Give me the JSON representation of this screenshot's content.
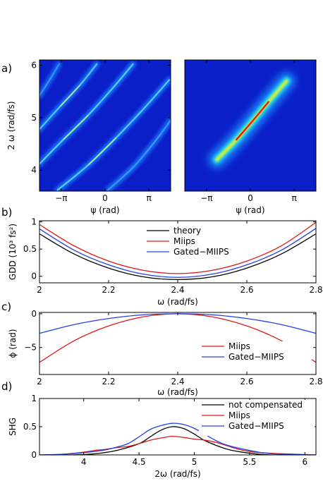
{
  "figure": {
    "panels": [
      {
        "label": "a)"
      },
      {
        "label": "b)"
      },
      {
        "label": "c)"
      },
      {
        "label": "d)"
      }
    ]
  },
  "chart_data": [
    {
      "type": "heatmap",
      "panel": "a) left",
      "xlabel": "ψ (rad)",
      "ylabel": "2 ω (rad/fs)",
      "xlim": [
        -4.7,
        4.7
      ],
      "ylim": [
        3.6,
        6.1
      ],
      "xticks": [
        {
          "v": -3.1416,
          "label": "−π"
        },
        {
          "v": 0,
          "label": "0"
        },
        {
          "v": 3.1416,
          "label": "π"
        }
      ],
      "yticks": [
        {
          "v": 4,
          "label": "4"
        },
        {
          "v": 5,
          "label": "5"
        },
        {
          "v": 6,
          "label": "6"
        }
      ],
      "background_color": "#0b1fc8",
      "ridges": [
        {
          "points": [
            [
              -4.7,
              5.42
            ],
            [
              -3.9,
              5.75
            ],
            [
              -3.3,
              6.02
            ]
          ],
          "peak": 0.3
        },
        {
          "points": [
            [
              -4.7,
              4.78
            ],
            [
              -3.2,
              5.22
            ],
            [
              -1.8,
              5.62
            ],
            [
              -0.6,
              6.02
            ]
          ],
          "peak": 0.55
        },
        {
          "points": [
            [
              -4.7,
              4.12
            ],
            [
              -3.0,
              4.58
            ],
            [
              -1.2,
              5.05
            ],
            [
              0.6,
              5.58
            ],
            [
              2.0,
              6.02
            ]
          ],
          "peak": 0.65
        },
        {
          "points": [
            [
              -3.4,
              3.62
            ],
            [
              -1.2,
              4.1
            ],
            [
              0.8,
              4.62
            ],
            [
              2.7,
              5.15
            ],
            [
              4.6,
              5.72
            ]
          ],
          "peak": 0.62
        },
        {
          "points": [
            [
              0.2,
              3.62
            ],
            [
              2.0,
              4.05
            ],
            [
              3.5,
              4.52
            ],
            [
              4.7,
              4.95
            ]
          ],
          "peak": 0.45
        }
      ]
    },
    {
      "type": "heatmap",
      "panel": "a) right",
      "xlabel": "ψ (rad)",
      "xlim": [
        -4.7,
        4.7
      ],
      "ylim": [
        3.6,
        6.1
      ],
      "xticks": [
        {
          "v": -3.1416,
          "label": "−π"
        },
        {
          "v": 0,
          "label": "0"
        },
        {
          "v": 3.1416,
          "label": "π"
        }
      ],
      "background_color": "#0b1fc8",
      "ridges": [
        {
          "points": [
            [
              -2.4,
              4.2
            ],
            [
              -1.0,
              4.58
            ],
            [
              0.2,
              4.95
            ],
            [
              1.3,
              5.3
            ],
            [
              2.6,
              5.7
            ]
          ],
          "peak": 1.0
        }
      ]
    },
    {
      "type": "line",
      "panel": "b)",
      "xlabel": "ω  (rad/fs)",
      "ylabel": "GDD (10³ fs²)",
      "xlim": [
        2.0,
        2.8
      ],
      "ylim": [
        -0.12,
        1.02
      ],
      "xticks": [
        {
          "v": 2,
          "label": "2"
        },
        {
          "v": 2.2,
          "label": "2.2"
        },
        {
          "v": 2.4,
          "label": "2.4"
        },
        {
          "v": 2.6,
          "label": "2.6"
        },
        {
          "v": 2.8,
          "label": "2.8"
        }
      ],
      "yticks": [
        {
          "v": 0,
          "label": "0"
        },
        {
          "v": 0.5,
          "label": "0.5"
        },
        {
          "v": 1,
          "label": "1"
        }
      ],
      "legend_position": "top-right",
      "series": [
        {
          "name": "theory",
          "color": "#000000",
          "x": [
            2.0,
            2.1,
            2.2,
            2.3,
            2.4,
            2.5,
            2.6,
            2.7,
            2.8
          ],
          "y": [
            0.78,
            0.41,
            0.15,
            -0.01,
            -0.06,
            -0.01,
            0.15,
            0.41,
            0.78
          ]
        },
        {
          "name": "Miips",
          "color": "#e01818",
          "x": [
            2.0,
            2.1,
            2.2,
            2.3,
            2.4,
            2.5,
            2.6,
            2.7,
            2.8
          ],
          "y": [
            0.95,
            0.56,
            0.28,
            0.11,
            0.05,
            0.11,
            0.28,
            0.56,
            0.99
          ]
        },
        {
          "name": "Gated−MIIPS",
          "color": "#2040e8",
          "x": [
            2.0,
            2.1,
            2.2,
            2.3,
            2.4,
            2.5,
            2.6,
            2.7,
            2.8
          ],
          "y": [
            0.87,
            0.48,
            0.21,
            0.04,
            -0.02,
            0.04,
            0.21,
            0.48,
            0.88
          ]
        }
      ]
    },
    {
      "type": "line",
      "panel": "c)",
      "xlabel": "ω  (rad/fs)",
      "ylabel": "ϕ (rad)",
      "xlim": [
        2.0,
        2.8
      ],
      "ylim": [
        -9.0,
        0.2
      ],
      "xticks": [
        {
          "v": 2,
          "label": "2"
        },
        {
          "v": 2.2,
          "label": "2.2"
        },
        {
          "v": 2.4,
          "label": "2.4"
        },
        {
          "v": 2.6,
          "label": "2.6"
        },
        {
          "v": 2.8,
          "label": "2.8"
        }
      ],
      "yticks": [
        {
          "v": -5,
          "label": "−5"
        },
        {
          "v": 0,
          "label": "0"
        }
      ],
      "legend_position": "bottom-right",
      "series": [
        {
          "name": "Miips",
          "color": "#e01818",
          "x": [
            2.0,
            2.1,
            2.2,
            2.3,
            2.4,
            2.5,
            2.6,
            2.7,
            2.8
          ],
          "y": [
            -7.2,
            -4.0,
            -1.8,
            -0.45,
            0.0,
            -0.45,
            -1.8,
            -4.0,
            -7.2
          ]
        },
        {
          "name": "Gated−MIIPS",
          "color": "#2040e8",
          "x": [
            2.0,
            2.1,
            2.2,
            2.3,
            2.4,
            2.5,
            2.6,
            2.7,
            2.8
          ],
          "y": [
            -2.9,
            -1.6,
            -0.7,
            -0.15,
            0.0,
            -0.15,
            -0.7,
            -1.6,
            -2.9
          ]
        }
      ]
    },
    {
      "type": "line",
      "panel": "d)",
      "xlabel": "2ω  (rad/fs)",
      "ylabel": "SHG",
      "xlim": [
        3.6,
        6.1
      ],
      "ylim": [
        0.0,
        1.0
      ],
      "xticks": [
        {
          "v": 4,
          "label": "4"
        },
        {
          "v": 4.5,
          "label": "4.5"
        },
        {
          "v": 5,
          "label": "5"
        },
        {
          "v": 5.5,
          "label": "5.5"
        },
        {
          "v": 6,
          "label": "6"
        }
      ],
      "yticks": [
        {
          "v": 0,
          "label": "0"
        },
        {
          "v": 0.5,
          "label": "0.5"
        },
        {
          "v": 1,
          "label": "1"
        }
      ],
      "legend_position": "top-right",
      "series": [
        {
          "name": "not compensated",
          "color": "#000000",
          "x": [
            3.6,
            3.9,
            4.1,
            4.3,
            4.5,
            4.6,
            4.7,
            4.8,
            4.9,
            5.0,
            5.1,
            5.3,
            5.5,
            5.7,
            6.1
          ],
          "y": [
            0.0,
            0.0,
            0.02,
            0.08,
            0.2,
            0.32,
            0.44,
            0.5,
            0.47,
            0.37,
            0.25,
            0.1,
            0.03,
            0.0,
            0.0
          ]
        },
        {
          "name": "Miips",
          "color": "#e01818",
          "x": [
            3.6,
            3.8,
            4.0,
            4.1,
            4.2,
            4.3,
            4.4,
            4.5,
            4.6,
            4.7,
            4.8,
            4.9,
            5.0,
            5.1,
            5.2,
            5.3,
            5.4,
            5.5,
            5.6,
            5.8,
            6.1
          ],
          "y": [
            0.0,
            0.01,
            0.05,
            0.08,
            0.1,
            0.13,
            0.15,
            0.2,
            0.26,
            0.3,
            0.33,
            0.31,
            0.28,
            0.26,
            0.22,
            0.16,
            0.1,
            0.06,
            0.04,
            0.02,
            0.0
          ]
        },
        {
          "name": "Gated−MIIPS",
          "color": "#2040e8",
          "x": [
            3.6,
            3.8,
            4.0,
            4.2,
            4.3,
            4.4,
            4.5,
            4.6,
            4.7,
            4.8,
            4.9,
            5.0,
            5.1,
            5.2,
            5.3,
            5.5,
            5.7,
            6.1
          ],
          "y": [
            0.0,
            0.01,
            0.04,
            0.09,
            0.14,
            0.2,
            0.32,
            0.45,
            0.52,
            0.56,
            0.54,
            0.47,
            0.36,
            0.25,
            0.17,
            0.08,
            0.02,
            0.0
          ]
        }
      ]
    }
  ]
}
